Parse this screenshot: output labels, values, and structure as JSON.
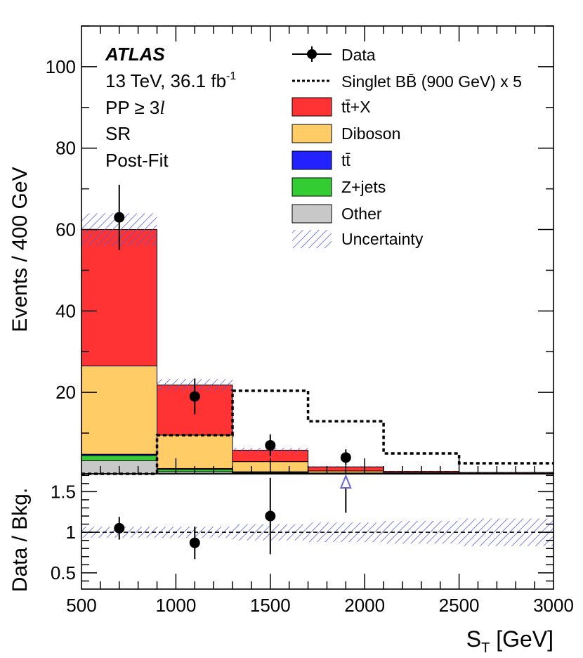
{
  "chart_data": [
    {
      "type": "bar",
      "stacked": true,
      "bin_edges": [
        500,
        900,
        1300,
        1700,
        2100,
        2500,
        3000
      ],
      "xlim": [
        500,
        3000
      ],
      "ylim": [
        0,
        110
      ],
      "ylabel": "Events / 400 GeV",
      "yticks": [
        20,
        40,
        60,
        80,
        100
      ],
      "ytick_labels": [
        "20",
        "40",
        "60",
        "80",
        "100"
      ],
      "series": [
        {
          "name": "Other",
          "color": "#c8c8c8",
          "values": [
            3.2,
            0.5,
            0.2,
            0.1,
            0.05,
            0.03
          ]
        },
        {
          "name": "Z+jets",
          "color": "#33cc33",
          "values": [
            1.3,
            0.6,
            0.2,
            0.05,
            0.02,
            0.01
          ]
        },
        {
          "name": "tt̄",
          "color": "#2222ff",
          "values": [
            0.3,
            0.2,
            0.1,
            0.05,
            0.02,
            0.01
          ]
        },
        {
          "name": "Diboson",
          "color": "#ffcc66",
          "values": [
            21.7,
            8.2,
            2.5,
            0.5,
            0.2,
            0.1
          ]
        },
        {
          "name": "tt̄+X",
          "color": "#ff3333",
          "values": [
            33.5,
            12.3,
            2.8,
            1.0,
            0.3,
            0.2
          ]
        }
      ],
      "uncertainty": {
        "label": "Uncertainty",
        "color": "#5555dd",
        "totals": [
          60.0,
          21.8,
          5.8,
          1.7,
          0.57,
          0.35
        ],
        "half_width": [
          4.0,
          1.5,
          0.6,
          0.2,
          0.08,
          0.06
        ]
      },
      "data": {
        "label": "Data",
        "x": [
          700,
          1100,
          1500,
          1900
        ],
        "y": [
          63,
          19,
          7,
          4
        ],
        "err": [
          8,
          4.4,
          2.7,
          2.0
        ]
      },
      "signal": {
        "label": "Singlet BB̄ (900 GeV) x 5",
        "values": [
          0,
          9.5,
          20.4,
          12.9,
          5.0,
          2.6
        ]
      },
      "legend_position": "top-right",
      "annotations": {
        "atlas": "ATLAS",
        "lumi_prefix": "13 TeV, 36.1 fb",
        "lumi_sup": "-1",
        "selection_prefix": "PP ≥ 3",
        "selection_var": "l",
        "region": "SR",
        "fit": "Post-Fit"
      }
    },
    {
      "type": "scatter",
      "xlabel_main": "S",
      "xlabel_sub": "T",
      "xlabel_unit": " [GeV]",
      "ylabel": "Data / Bkg.",
      "xlim": [
        500,
        3000
      ],
      "ylim": [
        0.3,
        1.72
      ],
      "yticks": [
        0.5,
        1,
        1.5
      ],
      "ytick_labels": [
        "0.5",
        "1",
        "1.5"
      ],
      "xticks": [
        500,
        1000,
        1500,
        2000,
        2500,
        3000
      ],
      "xtick_labels": [
        "500",
        "1000",
        "1500",
        "2000",
        "2500",
        "3000"
      ],
      "reference_line": 1,
      "ratio": {
        "x": [
          700,
          1100,
          1500
        ],
        "y": [
          1.05,
          0.87,
          1.2
        ],
        "err": [
          0.14,
          0.2,
          0.47
        ]
      },
      "offscale_arrow": {
        "x": 1900,
        "err_low": 1.24
      },
      "band_half_width": [
        0.067,
        0.068,
        0.1,
        0.12,
        0.14,
        0.17
      ]
    }
  ]
}
